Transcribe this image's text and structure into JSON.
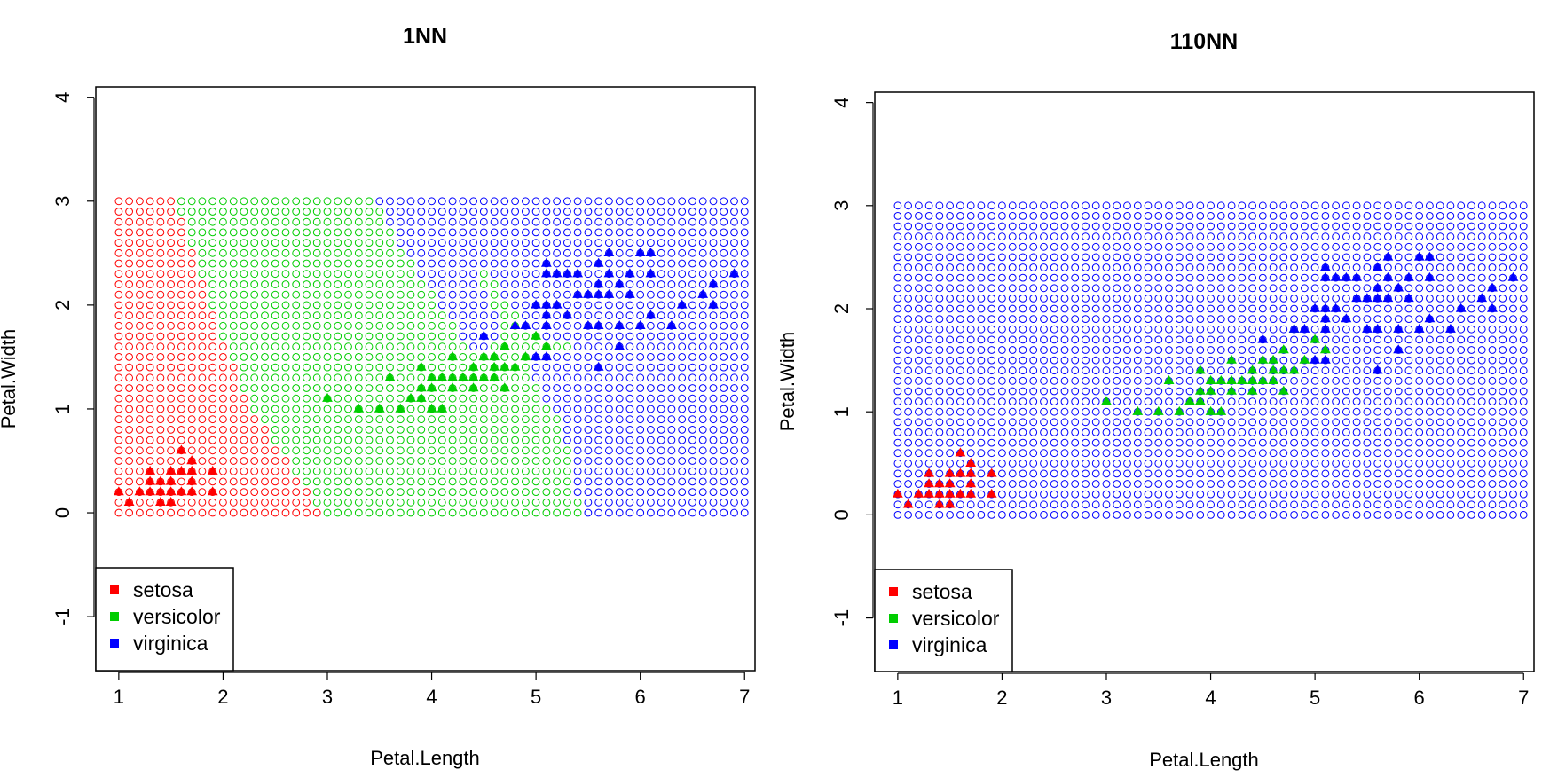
{
  "chart_data": [
    {
      "type": "scatter",
      "title": "1NN",
      "xlabel": "Petal.Length",
      "ylabel": "Petal.Width",
      "xlim": [
        0.78,
        7.1
      ],
      "ylim": [
        -1.52,
        4.1
      ],
      "xticks": [
        "1",
        "2",
        "3",
        "4",
        "5",
        "6",
        "7"
      ],
      "yticks": [
        "-1",
        "0",
        "1",
        "2",
        "3",
        "4"
      ],
      "k": 1,
      "grid_points": {
        "x_from": 1,
        "x_to": 7,
        "x_step": 0.1,
        "y_from": 0,
        "y_to": 3,
        "y_step": 0.1,
        "marker": "open-circle"
      },
      "legend": {
        "position": "bottom-left",
        "entries": [
          {
            "label": "setosa",
            "color": "#ff0000"
          },
          {
            "label": "versicolor",
            "color": "#00cd00"
          },
          {
            "label": "virginica",
            "color": "#0000ff"
          }
        ]
      }
    },
    {
      "type": "scatter",
      "title": "110NN",
      "xlabel": "Petal.Length",
      "ylabel": "Petal.Width",
      "xlim": [
        0.78,
        7.1
      ],
      "ylim": [
        -1.52,
        4.1
      ],
      "xticks": [
        "1",
        "2",
        "3",
        "4",
        "5",
        "6",
        "7"
      ],
      "yticks": [
        "-1",
        "0",
        "1",
        "2",
        "3",
        "4"
      ],
      "k": 110,
      "grid_points": {
        "x_from": 1,
        "x_to": 7,
        "x_step": 0.1,
        "y_from": 0,
        "y_to": 3,
        "y_step": 0.1,
        "marker": "open-circle"
      },
      "legend": {
        "position": "bottom-left",
        "entries": [
          {
            "label": "setosa",
            "color": "#ff0000"
          },
          {
            "label": "versicolor",
            "color": "#00cd00"
          },
          {
            "label": "virginica",
            "color": "#0000ff"
          }
        ]
      }
    }
  ],
  "observations": {
    "marker": "filled-triangle",
    "series": [
      {
        "name": "setosa",
        "color": "#ff0000",
        "points": [
          [
            1.0,
            0.2
          ],
          [
            1.1,
            0.1
          ],
          [
            1.2,
            0.2
          ],
          [
            1.3,
            0.2
          ],
          [
            1.3,
            0.3
          ],
          [
            1.3,
            0.4
          ],
          [
            1.4,
            0.1
          ],
          [
            1.4,
            0.2
          ],
          [
            1.4,
            0.3
          ],
          [
            1.5,
            0.1
          ],
          [
            1.5,
            0.2
          ],
          [
            1.5,
            0.3
          ],
          [
            1.5,
            0.4
          ],
          [
            1.6,
            0.2
          ],
          [
            1.6,
            0.4
          ],
          [
            1.6,
            0.6
          ],
          [
            1.7,
            0.2
          ],
          [
            1.7,
            0.3
          ],
          [
            1.7,
            0.4
          ],
          [
            1.7,
            0.5
          ],
          [
            1.9,
            0.2
          ],
          [
            1.9,
            0.4
          ]
        ]
      },
      {
        "name": "versicolor",
        "color": "#00cd00",
        "points": [
          [
            3.0,
            1.1
          ],
          [
            3.3,
            1.0
          ],
          [
            3.5,
            1.0
          ],
          [
            3.6,
            1.3
          ],
          [
            3.7,
            1.0
          ],
          [
            3.8,
            1.1
          ],
          [
            3.9,
            1.1
          ],
          [
            3.9,
            1.2
          ],
          [
            3.9,
            1.4
          ],
          [
            4.0,
            1.0
          ],
          [
            4.0,
            1.2
          ],
          [
            4.0,
            1.3
          ],
          [
            4.1,
            1.0
          ],
          [
            4.1,
            1.3
          ],
          [
            4.2,
            1.2
          ],
          [
            4.2,
            1.3
          ],
          [
            4.2,
            1.5
          ],
          [
            4.3,
            1.3
          ],
          [
            4.4,
            1.2
          ],
          [
            4.4,
            1.3
          ],
          [
            4.4,
            1.4
          ],
          [
            4.5,
            1.3
          ],
          [
            4.5,
            1.5
          ],
          [
            4.6,
            1.3
          ],
          [
            4.6,
            1.4
          ],
          [
            4.6,
            1.5
          ],
          [
            4.7,
            1.2
          ],
          [
            4.7,
            1.4
          ],
          [
            4.7,
            1.6
          ],
          [
            4.8,
            1.4
          ],
          [
            4.8,
            1.8
          ],
          [
            4.9,
            1.5
          ],
          [
            5.0,
            1.7
          ],
          [
            5.1,
            1.6
          ]
        ]
      },
      {
        "name": "virginica",
        "color": "#0000ff",
        "points": [
          [
            4.5,
            1.7
          ],
          [
            4.8,
            1.8
          ],
          [
            4.9,
            1.8
          ],
          [
            5.0,
            1.5
          ],
          [
            5.0,
            2.0
          ],
          [
            5.1,
            1.5
          ],
          [
            5.1,
            1.8
          ],
          [
            5.1,
            1.9
          ],
          [
            5.1,
            2.0
          ],
          [
            5.1,
            2.3
          ],
          [
            5.1,
            2.4
          ],
          [
            5.2,
            2.0
          ],
          [
            5.2,
            2.3
          ],
          [
            5.3,
            1.9
          ],
          [
            5.3,
            2.3
          ],
          [
            5.4,
            2.1
          ],
          [
            5.4,
            2.3
          ],
          [
            5.5,
            1.8
          ],
          [
            5.5,
            2.1
          ],
          [
            5.6,
            1.4
          ],
          [
            5.6,
            1.8
          ],
          [
            5.6,
            2.1
          ],
          [
            5.6,
            2.2
          ],
          [
            5.6,
            2.4
          ],
          [
            5.7,
            2.1
          ],
          [
            5.7,
            2.3
          ],
          [
            5.7,
            2.5
          ],
          [
            5.8,
            1.6
          ],
          [
            5.8,
            1.8
          ],
          [
            5.8,
            2.2
          ],
          [
            5.9,
            2.1
          ],
          [
            5.9,
            2.3
          ],
          [
            6.0,
            1.8
          ],
          [
            6.0,
            2.5
          ],
          [
            6.1,
            1.9
          ],
          [
            6.1,
            2.3
          ],
          [
            6.1,
            2.5
          ],
          [
            6.3,
            1.8
          ],
          [
            6.4,
            2.0
          ],
          [
            6.6,
            2.1
          ],
          [
            6.7,
            2.0
          ],
          [
            6.7,
            2.2
          ],
          [
            6.9,
            2.3
          ]
        ]
      }
    ]
  }
}
